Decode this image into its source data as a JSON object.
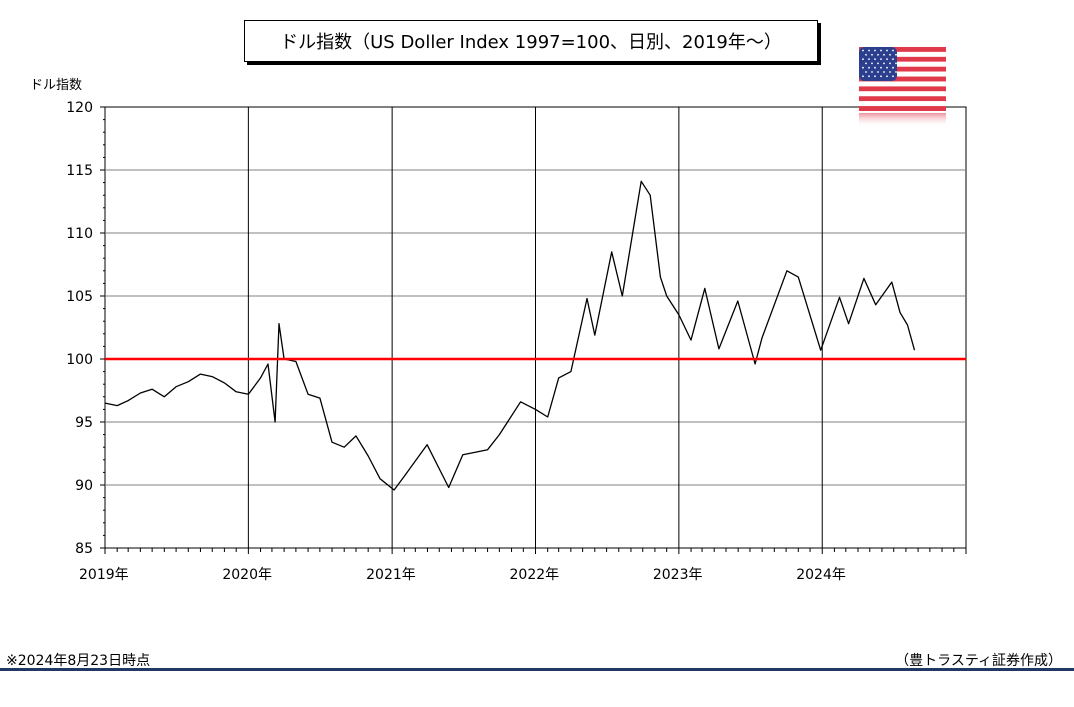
{
  "chart_data": {
    "type": "line",
    "title": "ドル指数（US Doller Index 1997=100、日別、2019年～）",
    "ylabel": "ドル指数",
    "ylim": [
      85,
      120
    ],
    "yticks": [
      "85",
      "90",
      "95",
      "100",
      "105",
      "110",
      "115",
      "120"
    ],
    "xlim": [
      "2019-01-01",
      "2025-01-01"
    ],
    "xticks": [
      {
        "date": "2019-01-01",
        "label": "2019年"
      },
      {
        "date": "2020-01-01",
        "label": "2020年"
      },
      {
        "date": "2021-01-01",
        "label": "2021年"
      },
      {
        "date": "2022-01-01",
        "label": "2022年"
      },
      {
        "date": "2023-01-01",
        "label": "2023年"
      },
      {
        "date": "2024-01-01",
        "label": "2024年"
      }
    ],
    "grid": true,
    "series": [
      {
        "color": "#000000",
        "points": [
          [
            "2019-01-01",
            96.5
          ],
          [
            "2019-02-01",
            96.3
          ],
          [
            "2019-03-01",
            96.7
          ],
          [
            "2019-04-01",
            97.3
          ],
          [
            "2019-05-01",
            97.6
          ],
          [
            "2019-06-01",
            97.0
          ],
          [
            "2019-07-01",
            97.8
          ],
          [
            "2019-08-01",
            98.2
          ],
          [
            "2019-09-01",
            98.8
          ],
          [
            "2019-10-01",
            98.6
          ],
          [
            "2019-11-01",
            98.1
          ],
          [
            "2019-12-01",
            97.4
          ],
          [
            "2020-01-01",
            97.2
          ],
          [
            "2020-02-01",
            98.5
          ],
          [
            "2020-02-20",
            99.6
          ],
          [
            "2020-03-09",
            95.0
          ],
          [
            "2020-03-19",
            102.8
          ],
          [
            "2020-04-01",
            100.0
          ],
          [
            "2020-05-01",
            99.8
          ],
          [
            "2020-06-01",
            97.2
          ],
          [
            "2020-07-01",
            96.9
          ],
          [
            "2020-08-01",
            93.4
          ],
          [
            "2020-09-01",
            93.0
          ],
          [
            "2020-10-01",
            93.9
          ],
          [
            "2020-11-01",
            92.3
          ],
          [
            "2020-12-01",
            90.5
          ],
          [
            "2021-01-06",
            89.6
          ],
          [
            "2021-02-01",
            90.7
          ],
          [
            "2021-03-31",
            93.2
          ],
          [
            "2021-05-25",
            89.8
          ],
          [
            "2021-06-30",
            92.4
          ],
          [
            "2021-08-01",
            92.6
          ],
          [
            "2021-09-01",
            92.8
          ],
          [
            "2021-10-01",
            94.0
          ],
          [
            "2021-11-24",
            96.6
          ],
          [
            "2022-01-01",
            96.0
          ],
          [
            "2022-02-01",
            95.4
          ],
          [
            "2022-03-01",
            98.5
          ],
          [
            "2022-04-01",
            99.0
          ],
          [
            "2022-05-12",
            104.8
          ],
          [
            "2022-06-01",
            101.9
          ],
          [
            "2022-07-14",
            108.5
          ],
          [
            "2022-08-10",
            105.0
          ],
          [
            "2022-09-27",
            114.1
          ],
          [
            "2022-10-20",
            113.0
          ],
          [
            "2022-11-15",
            106.5
          ],
          [
            "2022-12-01",
            105.0
          ],
          [
            "2023-01-01",
            103.5
          ],
          [
            "2023-02-01",
            101.5
          ],
          [
            "2023-03-08",
            105.6
          ],
          [
            "2023-04-13",
            100.8
          ],
          [
            "2023-05-31",
            104.6
          ],
          [
            "2023-07-14",
            99.6
          ],
          [
            "2023-08-01",
            101.7
          ],
          [
            "2023-10-03",
            107.0
          ],
          [
            "2023-11-01",
            106.5
          ],
          [
            "2023-12-28",
            100.7
          ],
          [
            "2024-02-14",
            104.9
          ],
          [
            "2024-03-08",
            102.8
          ],
          [
            "2024-04-16",
            106.4
          ],
          [
            "2024-05-16",
            104.3
          ],
          [
            "2024-06-26",
            106.1
          ],
          [
            "2024-07-17",
            103.7
          ],
          [
            "2024-08-05",
            102.7
          ],
          [
            "2024-08-23",
            100.7
          ]
        ]
      },
      {
        "color": "#ff0000",
        "points": [
          [
            "2019-01-01",
            100
          ],
          [
            "2025-01-01",
            100
          ]
        ]
      }
    ]
  },
  "flag_icon": "us-flag-icon",
  "footnote": "※2024年8月23日時点",
  "credit": "（豊トラスティ証券作成）"
}
